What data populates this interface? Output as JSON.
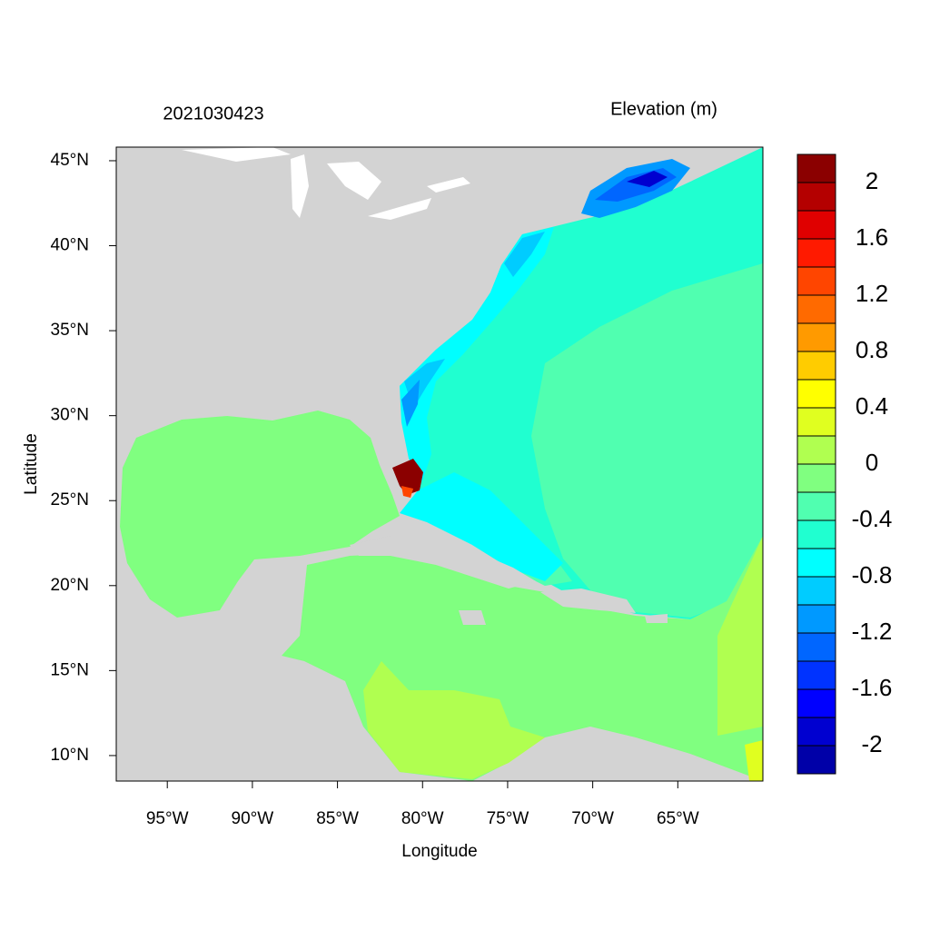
{
  "chart_data": {
    "type": "contour-map",
    "title": "2021030423",
    "subtitle": "Elevation (m)",
    "xlabel": "Longitude",
    "ylabel": "Latitude",
    "xlim": [
      -98,
      -60
    ],
    "ylim": [
      8.5,
      45.8
    ],
    "xticks": [
      {
        "value": -95,
        "label": "95°W"
      },
      {
        "value": -90,
        "label": "90°W"
      },
      {
        "value": -85,
        "label": "85°W"
      },
      {
        "value": -80,
        "label": "80°W"
      },
      {
        "value": -75,
        "label": "75°W"
      },
      {
        "value": -70,
        "label": "70°W"
      },
      {
        "value": -65,
        "label": "65°W"
      }
    ],
    "yticks": [
      {
        "value": 10,
        "label": "10°N"
      },
      {
        "value": 15,
        "label": "15°N"
      },
      {
        "value": 20,
        "label": "20°N"
      },
      {
        "value": 25,
        "label": "25°N"
      },
      {
        "value": 30,
        "label": "30°N"
      },
      {
        "value": 35,
        "label": "35°N"
      },
      {
        "value": 40,
        "label": "40°N"
      },
      {
        "value": 45,
        "label": "45°N"
      }
    ],
    "colorbar": {
      "lim": [
        -2.2,
        2.2
      ],
      "ticks": [
        2,
        1.6,
        1.2,
        0.8,
        0.4,
        0,
        -0.4,
        -0.8,
        -1.2,
        -1.6,
        -2
      ],
      "colors": [
        "#0000a8",
        "#0000d0",
        "#0000ff",
        "#0033ff",
        "#0066ff",
        "#0099ff",
        "#00ccff",
        "#00ffff",
        "#20ffd0",
        "#50ffb0",
        "#80ff80",
        "#b0ff50",
        "#e0ff20",
        "#ffff00",
        "#ffcc00",
        "#ff9a00",
        "#ff6a00",
        "#ff4500",
        "#ff1a00",
        "#e00000",
        "#b40000",
        "#8b0000"
      ]
    }
  }
}
